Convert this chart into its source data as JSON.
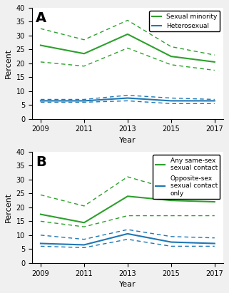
{
  "years": [
    2009,
    2011,
    2013,
    2015,
    2017
  ],
  "panel_A": {
    "sexual_minority": {
      "main": [
        26.5,
        23.5,
        30.5,
        22.5,
        20.5
      ],
      "upper": [
        32.5,
        28.5,
        35.5,
        26.0,
        23.0
      ],
      "lower": [
        20.5,
        19.0,
        25.5,
        19.5,
        17.5
      ]
    },
    "heterosexual": {
      "main": [
        6.5,
        6.5,
        7.5,
        6.5,
        6.5
      ],
      "upper": [
        7.0,
        7.0,
        8.5,
        7.5,
        7.0
      ],
      "lower": [
        6.0,
        6.0,
        6.5,
        5.5,
        5.5
      ]
    },
    "label": "A",
    "legend_entries": [
      "Sexual minority",
      "Heterosexual"
    ],
    "ylabel": "Percent",
    "xlabel": "Year",
    "ylim": [
      0,
      40
    ],
    "yticks": [
      0,
      5,
      10,
      15,
      20,
      25,
      30,
      35,
      40
    ]
  },
  "panel_B": {
    "same_sex": {
      "main": [
        17.5,
        14.5,
        24.0,
        22.5,
        22.0
      ],
      "upper": [
        24.5,
        20.5,
        31.0,
        26.5,
        26.5
      ],
      "lower": [
        15.0,
        13.0,
        17.0,
        17.0,
        17.0
      ]
    },
    "opposite_sex": {
      "main": [
        7.0,
        6.5,
        10.5,
        7.5,
        7.0
      ],
      "upper": [
        10.0,
        8.5,
        12.0,
        9.5,
        9.0
      ],
      "lower": [
        6.0,
        5.5,
        8.5,
        6.0,
        6.0
      ]
    },
    "label": "B",
    "legend_entry_green": "Any same-sex\nsexual contact",
    "legend_entry_blue": "Opposite-sex\nsexual contact\nonly",
    "ylabel": "Percent",
    "xlabel": "Year",
    "ylim": [
      0,
      40
    ],
    "yticks": [
      0,
      5,
      10,
      15,
      20,
      25,
      30,
      35,
      40
    ]
  },
  "green_color": "#2ca02c",
  "blue_color": "#1f77b4",
  "background_color": "#f0f0f0",
  "panel_bg": "#ffffff"
}
